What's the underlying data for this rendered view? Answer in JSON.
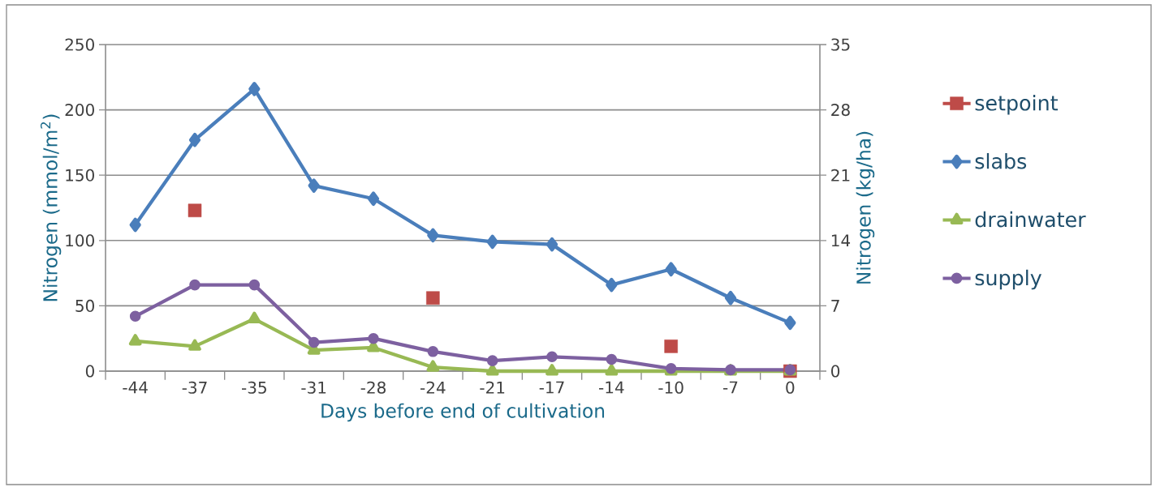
{
  "chart_data": {
    "type": "line",
    "xlabel": "Days before end of cultivation",
    "ylabel": "Nitrogen (mmol/m$^{2}$)",
    "y2label": "Nitrogen (kg/ha)",
    "categories": [
      "-44",
      "-37",
      "-35",
      "-31",
      "-28",
      "-24",
      "-21",
      "-17",
      "-14",
      "-10",
      "-7",
      "0"
    ],
    "ylim": [
      0,
      250
    ],
    "yticks": [
      0,
      50,
      100,
      150,
      200,
      250
    ],
    "y2lim": [
      0,
      35
    ],
    "y2ticks": [
      0,
      7,
      14,
      21,
      28,
      35
    ],
    "grid": "y",
    "legend": "right",
    "series": [
      {
        "name": "setpoint",
        "type": "scatter",
        "marker": "square",
        "color": "#be4b48",
        "values": [
          null,
          123,
          null,
          null,
          null,
          56,
          null,
          null,
          null,
          19,
          null,
          0
        ]
      },
      {
        "name": "slabs",
        "marker": "diamond",
        "color": "#4a7ebb",
        "values": [
          112,
          177,
          216,
          142,
          132,
          104,
          99,
          97,
          66,
          78,
          56,
          37
        ]
      },
      {
        "name": "drainwater",
        "marker": "triangle",
        "color": "#98b954",
        "values": [
          23,
          19,
          40,
          16,
          18,
          3,
          0,
          0,
          0,
          0,
          0,
          0
        ]
      },
      {
        "name": "supply",
        "marker": "circle",
        "color": "#7d60a0",
        "values": [
          42,
          66,
          66,
          22,
          25,
          15,
          8,
          11,
          9,
          2,
          1,
          1
        ]
      }
    ]
  }
}
